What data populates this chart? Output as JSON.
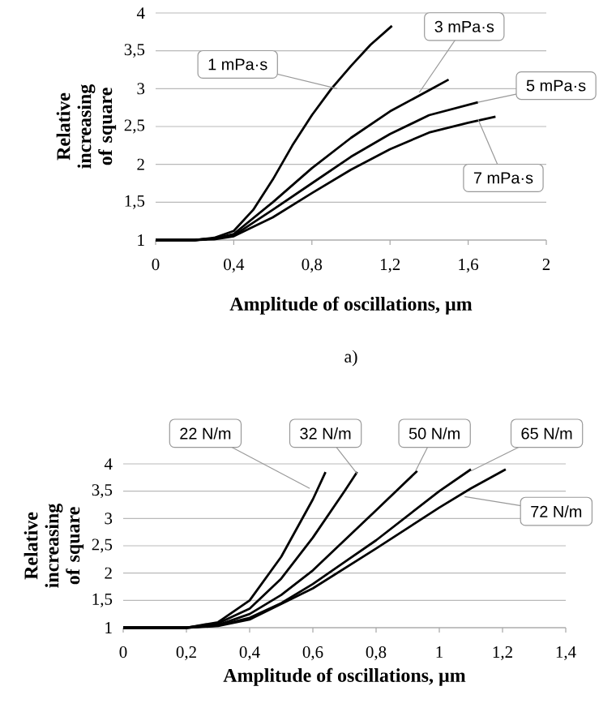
{
  "chart_data": [
    {
      "type": "line",
      "xlabel": "Amplitude of oscillations, µm",
      "ylabel": "Relative increasing of square",
      "xlim": [
        0,
        2
      ],
      "ylim": [
        1,
        4
      ],
      "xticks": [
        0,
        {
          "value": 0.4,
          "label": "0,4"
        },
        {
          "value": 0.8,
          "label": "0,8"
        },
        {
          "value": 1.2,
          "label": "1,2"
        },
        {
          "value": 1.6,
          "label": "1,6"
        },
        2
      ],
      "yticks": [
        1,
        {
          "value": 1.5,
          "label": "1,5"
        },
        2,
        {
          "value": 2.5,
          "label": "2,5"
        },
        3,
        {
          "value": 3.5,
          "label": "3,5"
        },
        4
      ],
      "grid": "y",
      "marker": "none",
      "line_style": "solid",
      "series": [
        {
          "color": "#000000",
          "x": [
            0,
            0.2,
            0.3,
            0.4,
            0.5,
            0.6,
            0.7,
            0.8,
            0.9,
            1.0,
            1.1,
            1.21
          ],
          "values": [
            1,
            1,
            1.03,
            1.12,
            1.4,
            1.8,
            2.25,
            2.65,
            3.0,
            3.3,
            3.58,
            3.83
          ]
        },
        {
          "color": "#000000",
          "x": [
            0,
            0.2,
            0.3,
            0.4,
            0.6,
            0.8,
            1.0,
            1.2,
            1.4,
            1.5
          ],
          "values": [
            1,
            1,
            1.02,
            1.08,
            1.5,
            1.95,
            2.35,
            2.7,
            2.98,
            3.12
          ]
        },
        {
          "color": "#000000",
          "x": [
            0,
            0.2,
            0.3,
            0.4,
            0.6,
            0.8,
            1.0,
            1.2,
            1.4,
            1.65
          ],
          "values": [
            1,
            1,
            1.02,
            1.06,
            1.4,
            1.75,
            2.1,
            2.4,
            2.65,
            2.82
          ]
        },
        {
          "color": "#000000",
          "x": [
            0,
            0.2,
            0.3,
            0.4,
            0.6,
            0.8,
            1.0,
            1.2,
            1.4,
            1.6,
            1.74
          ],
          "values": [
            1,
            1,
            1.01,
            1.05,
            1.3,
            1.62,
            1.93,
            2.2,
            2.42,
            2.55,
            2.63
          ]
        }
      ],
      "annotations": [
        {
          "text": "1 mPa·s",
          "x": 0.93,
          "y": 3.0
        },
        {
          "text": "3 mPa·s",
          "x": 1.35,
          "y": 2.95
        },
        {
          "text": "5 mPa·s",
          "x": 1.65,
          "y": 2.82
        },
        {
          "text": "7 mPa·s",
          "x": 1.65,
          "y": 2.6
        },
        "a)"
      ]
    },
    {
      "type": "line",
      "xlabel": "Amplitude of oscillations, µm",
      "ylabel": "Relative increasing of square",
      "xlim": [
        0,
        1.4
      ],
      "ylim": [
        1,
        4
      ],
      "xticks": [
        0,
        {
          "value": 0.2,
          "label": "0,2"
        },
        {
          "value": 0.4,
          "label": "0,4"
        },
        {
          "value": 0.6,
          "label": "0,6"
        },
        {
          "value": 0.8,
          "label": "0,8"
        },
        1,
        {
          "value": 1.2,
          "label": "1,2"
        },
        {
          "value": 1.4,
          "label": "1,4"
        }
      ],
      "yticks": [
        1,
        {
          "value": 1.5,
          "label": "1,5"
        },
        2,
        {
          "value": 2.5,
          "label": "2,5"
        },
        3,
        {
          "value": 3.5,
          "label": "3,5"
        },
        4
      ],
      "grid": "y",
      "marker": "none",
      "line_style": "solid",
      "series": [
        {
          "color": "#000000",
          "x": [
            0,
            0.2,
            0.3,
            0.4,
            0.5,
            0.6,
            0.64
          ],
          "values": [
            1,
            1,
            1.1,
            1.5,
            2.3,
            3.35,
            3.85
          ]
        },
        {
          "color": "#000000",
          "x": [
            0,
            0.2,
            0.3,
            0.4,
            0.5,
            0.6,
            0.7,
            0.74
          ],
          "values": [
            1,
            1,
            1.08,
            1.35,
            1.9,
            2.65,
            3.5,
            3.85
          ]
        },
        {
          "color": "#000000",
          "x": [
            0,
            0.2,
            0.3,
            0.4,
            0.5,
            0.6,
            0.7,
            0.8,
            0.93
          ],
          "values": [
            1,
            1,
            1.05,
            1.25,
            1.6,
            2.05,
            2.6,
            3.15,
            3.87
          ]
        },
        {
          "color": "#000000",
          "x": [
            0,
            0.2,
            0.3,
            0.4,
            0.5,
            0.6,
            0.7,
            0.8,
            0.9,
            1.0,
            1.1
          ],
          "values": [
            1,
            1,
            1.04,
            1.18,
            1.45,
            1.8,
            2.2,
            2.6,
            3.05,
            3.5,
            3.9
          ]
        },
        {
          "color": "#000000",
          "x": [
            0,
            0.2,
            0.3,
            0.4,
            0.6,
            0.8,
            1.0,
            1.1,
            1.21
          ],
          "values": [
            1,
            1,
            1.03,
            1.15,
            1.72,
            2.45,
            3.2,
            3.55,
            3.9
          ]
        }
      ],
      "annotations": [
        {
          "text": "22 N/m",
          "x": 0.59,
          "y": 3.55
        },
        {
          "text": "32 N/m",
          "x": 0.74,
          "y": 3.82
        },
        {
          "text": "50 N/m",
          "x": 0.925,
          "y": 3.87
        },
        {
          "text": "65 N/m",
          "x": 1.1,
          "y": 3.87
        },
        {
          "text": "72 N/m",
          "x": 1.08,
          "y": 3.4
        }
      ]
    }
  ]
}
